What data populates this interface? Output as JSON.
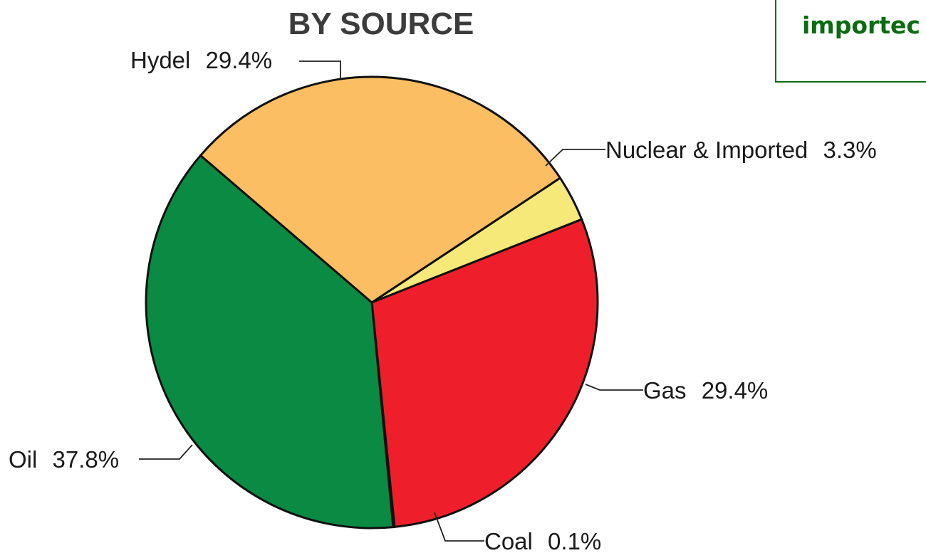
{
  "chart_data": {
    "type": "pie",
    "title": "BY SOURCE",
    "slices": [
      {
        "label": "Nuclear & Imported",
        "value_text": "3.3%",
        "value": 3.3,
        "color": "#f6e97a"
      },
      {
        "label": "Gas",
        "value_text": "29.4%",
        "value": 29.4,
        "color": "#ee1f2b"
      },
      {
        "label": "Coal",
        "value_text": "0.1%",
        "value": 0.1,
        "color": "#111111"
      },
      {
        "label": "Oil",
        "value_text": "37.8%",
        "value": 37.8,
        "color": "#0a8a43"
      },
      {
        "label": "Hydel",
        "value_text": "29.4%",
        "value": 29.4,
        "color": "#fbbe62"
      }
    ]
  },
  "callout": {
    "text": "importec"
  }
}
